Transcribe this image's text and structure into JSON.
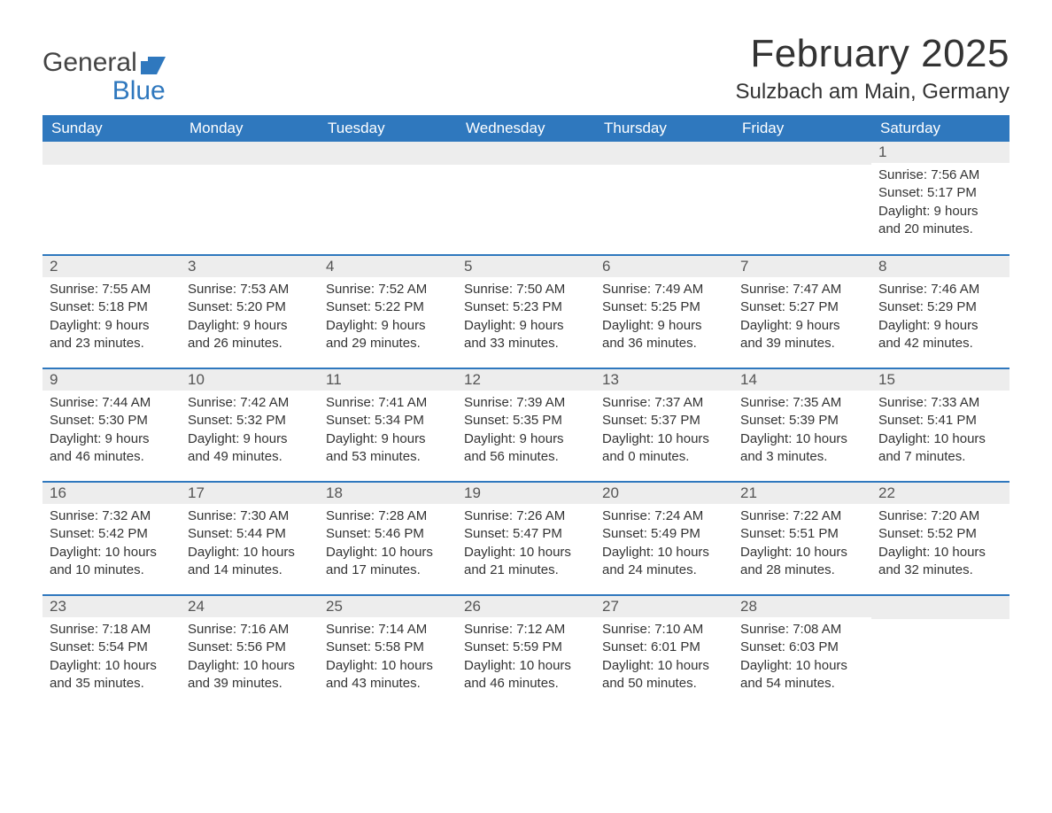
{
  "brand": {
    "word1": "General",
    "word2": "Blue"
  },
  "title": "February 2025",
  "location": "Sulzbach am Main, Germany",
  "colors": {
    "header_bg": "#2f78be",
    "header_text": "#ffffff",
    "daynum_bg": "#ededed",
    "rule": "#2f78be",
    "body_text": "#333333",
    "brand_blue": "#2f78be"
  },
  "weekdays": [
    "Sunday",
    "Monday",
    "Tuesday",
    "Wednesday",
    "Thursday",
    "Friday",
    "Saturday"
  ],
  "weeks": [
    [
      null,
      null,
      null,
      null,
      null,
      null,
      {
        "n": "1",
        "sunrise": "7:56 AM",
        "sunset": "5:17 PM",
        "dl": "9 hours and 20 minutes."
      }
    ],
    [
      {
        "n": "2",
        "sunrise": "7:55 AM",
        "sunset": "5:18 PM",
        "dl": "9 hours and 23 minutes."
      },
      {
        "n": "3",
        "sunrise": "7:53 AM",
        "sunset": "5:20 PM",
        "dl": "9 hours and 26 minutes."
      },
      {
        "n": "4",
        "sunrise": "7:52 AM",
        "sunset": "5:22 PM",
        "dl": "9 hours and 29 minutes."
      },
      {
        "n": "5",
        "sunrise": "7:50 AM",
        "sunset": "5:23 PM",
        "dl": "9 hours and 33 minutes."
      },
      {
        "n": "6",
        "sunrise": "7:49 AM",
        "sunset": "5:25 PM",
        "dl": "9 hours and 36 minutes."
      },
      {
        "n": "7",
        "sunrise": "7:47 AM",
        "sunset": "5:27 PM",
        "dl": "9 hours and 39 minutes."
      },
      {
        "n": "8",
        "sunrise": "7:46 AM",
        "sunset": "5:29 PM",
        "dl": "9 hours and 42 minutes."
      }
    ],
    [
      {
        "n": "9",
        "sunrise": "7:44 AM",
        "sunset": "5:30 PM",
        "dl": "9 hours and 46 minutes."
      },
      {
        "n": "10",
        "sunrise": "7:42 AM",
        "sunset": "5:32 PM",
        "dl": "9 hours and 49 minutes."
      },
      {
        "n": "11",
        "sunrise": "7:41 AM",
        "sunset": "5:34 PM",
        "dl": "9 hours and 53 minutes."
      },
      {
        "n": "12",
        "sunrise": "7:39 AM",
        "sunset": "5:35 PM",
        "dl": "9 hours and 56 minutes."
      },
      {
        "n": "13",
        "sunrise": "7:37 AM",
        "sunset": "5:37 PM",
        "dl": "10 hours and 0 minutes."
      },
      {
        "n": "14",
        "sunrise": "7:35 AM",
        "sunset": "5:39 PM",
        "dl": "10 hours and 3 minutes."
      },
      {
        "n": "15",
        "sunrise": "7:33 AM",
        "sunset": "5:41 PM",
        "dl": "10 hours and 7 minutes."
      }
    ],
    [
      {
        "n": "16",
        "sunrise": "7:32 AM",
        "sunset": "5:42 PM",
        "dl": "10 hours and 10 minutes."
      },
      {
        "n": "17",
        "sunrise": "7:30 AM",
        "sunset": "5:44 PM",
        "dl": "10 hours and 14 minutes."
      },
      {
        "n": "18",
        "sunrise": "7:28 AM",
        "sunset": "5:46 PM",
        "dl": "10 hours and 17 minutes."
      },
      {
        "n": "19",
        "sunrise": "7:26 AM",
        "sunset": "5:47 PM",
        "dl": "10 hours and 21 minutes."
      },
      {
        "n": "20",
        "sunrise": "7:24 AM",
        "sunset": "5:49 PM",
        "dl": "10 hours and 24 minutes."
      },
      {
        "n": "21",
        "sunrise": "7:22 AM",
        "sunset": "5:51 PM",
        "dl": "10 hours and 28 minutes."
      },
      {
        "n": "22",
        "sunrise": "7:20 AM",
        "sunset": "5:52 PM",
        "dl": "10 hours and 32 minutes."
      }
    ],
    [
      {
        "n": "23",
        "sunrise": "7:18 AM",
        "sunset": "5:54 PM",
        "dl": "10 hours and 35 minutes."
      },
      {
        "n": "24",
        "sunrise": "7:16 AM",
        "sunset": "5:56 PM",
        "dl": "10 hours and 39 minutes."
      },
      {
        "n": "25",
        "sunrise": "7:14 AM",
        "sunset": "5:58 PM",
        "dl": "10 hours and 43 minutes."
      },
      {
        "n": "26",
        "sunrise": "7:12 AM",
        "sunset": "5:59 PM",
        "dl": "10 hours and 46 minutes."
      },
      {
        "n": "27",
        "sunrise": "7:10 AM",
        "sunset": "6:01 PM",
        "dl": "10 hours and 50 minutes."
      },
      {
        "n": "28",
        "sunrise": "7:08 AM",
        "sunset": "6:03 PM",
        "dl": "10 hours and 54 minutes."
      },
      null
    ]
  ],
  "labels": {
    "sunrise": "Sunrise: ",
    "sunset": "Sunset: ",
    "daylight": "Daylight: "
  }
}
